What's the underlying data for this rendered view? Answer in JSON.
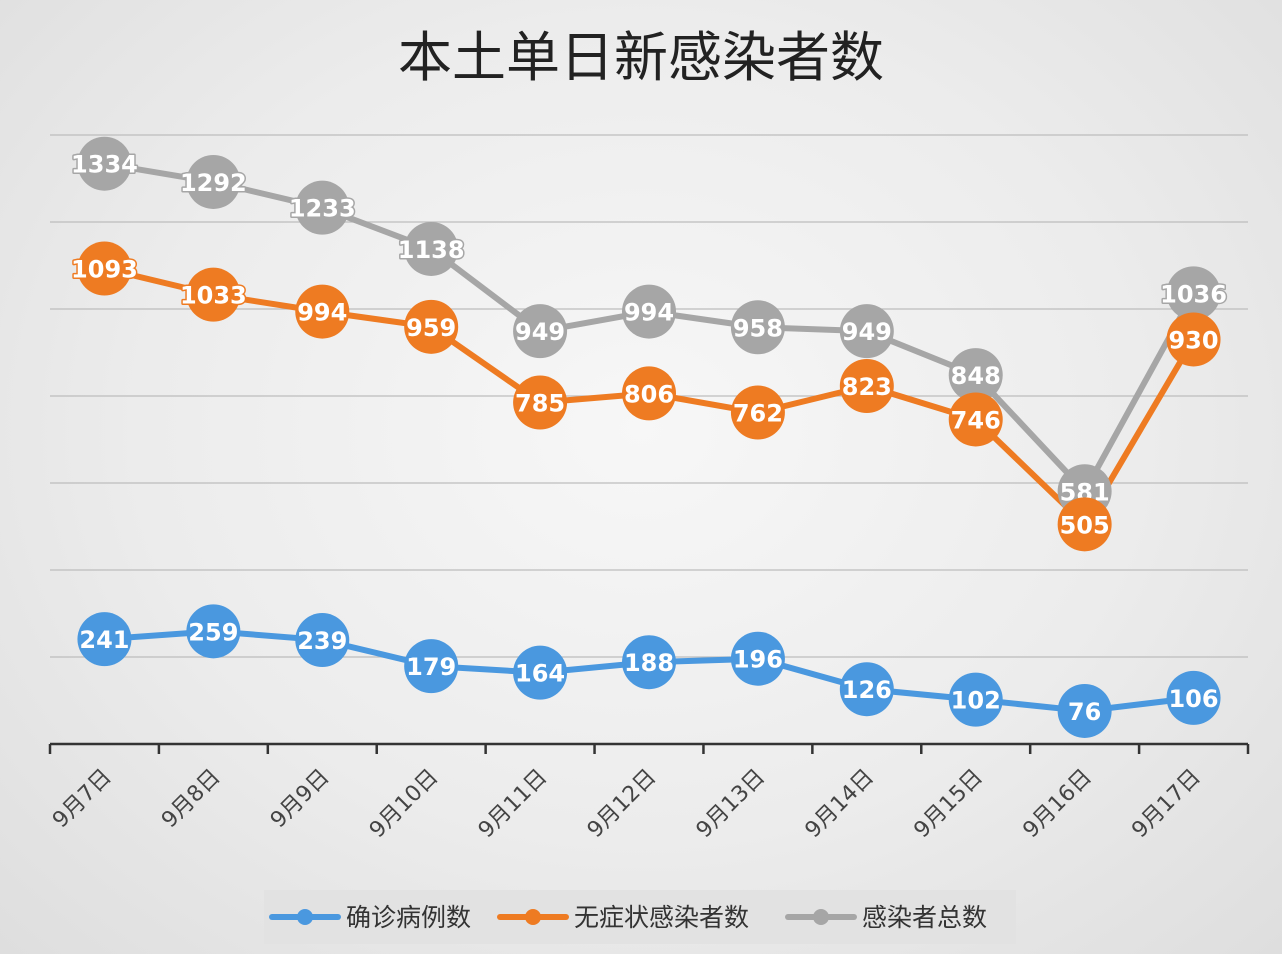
{
  "chart_data": {
    "type": "line",
    "title": "本土单日新感染者数",
    "categories": [
      "9月7日",
      "9月8日",
      "9月9日",
      "9月10日",
      "9月11日",
      "9月12日",
      "9月13日",
      "9月14日",
      "9月15日",
      "9月16日",
      "9月17日"
    ],
    "series": [
      {
        "key": "confirmed",
        "name": "确诊病例数",
        "color": "#4a98df",
        "values": [
          241,
          259,
          239,
          179,
          164,
          188,
          196,
          126,
          102,
          76,
          106
        ]
      },
      {
        "key": "asymptomatic",
        "name": "无症状感染者数",
        "color": "#ee7b22",
        "values": [
          1093,
          1033,
          994,
          959,
          785,
          806,
          762,
          823,
          746,
          505,
          930
        ]
      },
      {
        "key": "total",
        "name": "感染者总数",
        "color": "#a6a6a6",
        "values": [
          1334,
          1292,
          1233,
          1138,
          949,
          994,
          958,
          949,
          848,
          581,
          1036
        ]
      }
    ],
    "ylim": [
      0,
      1400
    ],
    "grid": true,
    "legend_position": "bottom"
  }
}
